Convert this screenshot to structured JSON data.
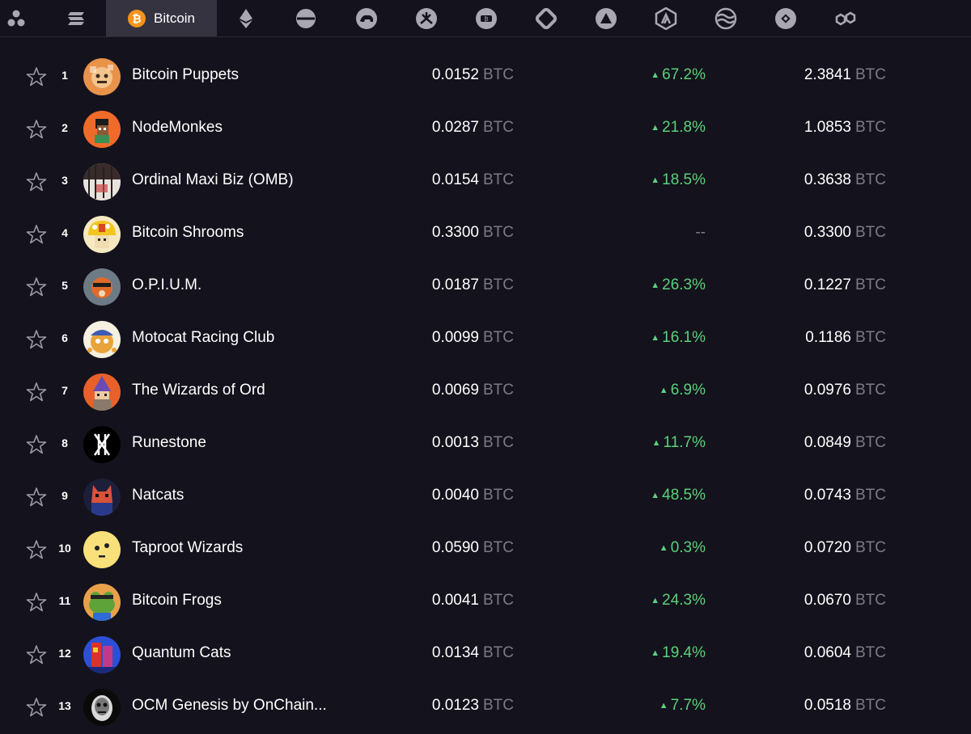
{
  "colors": {
    "background": "#14121c",
    "active_tab": "#353340",
    "positive": "#5bd17c",
    "muted": "#7c7a86",
    "bitcoin": "#f7931a"
  },
  "chain_tabs": [
    {
      "icon": "magic-eden-icon",
      "label": ""
    },
    {
      "icon": "solana-icon",
      "label": ""
    },
    {
      "icon": "bitcoin-icon",
      "label": "Bitcoin",
      "active": true
    },
    {
      "icon": "ethereum-icon",
      "label": ""
    },
    {
      "icon": "base-icon",
      "label": ""
    },
    {
      "icon": "berachain-icon",
      "label": ""
    },
    {
      "icon": "apechain-icon",
      "label": ""
    },
    {
      "icon": "abstract-icon",
      "label": ""
    },
    {
      "icon": "monad-icon",
      "label": ""
    },
    {
      "icon": "avalanche-icon",
      "label": ""
    },
    {
      "icon": "arbitrum-icon",
      "label": ""
    },
    {
      "icon": "sei-icon",
      "label": ""
    },
    {
      "icon": "bnb-icon",
      "label": ""
    },
    {
      "icon": "polygon-icon",
      "label": ""
    }
  ],
  "unit": "BTC",
  "collections": [
    {
      "rank": "1",
      "name": "Bitcoin Puppets",
      "price": "0.0152",
      "change": "67.2%",
      "trend": "up",
      "volume": "2.3841"
    },
    {
      "rank": "2",
      "name": "NodeMonkes",
      "price": "0.0287",
      "change": "21.8%",
      "trend": "up",
      "volume": "1.0853"
    },
    {
      "rank": "3",
      "name": "Ordinal Maxi Biz (OMB)",
      "price": "0.0154",
      "change": "18.5%",
      "trend": "up",
      "volume": "0.3638"
    },
    {
      "rank": "4",
      "name": "Bitcoin Shrooms",
      "price": "0.3300",
      "change": "--",
      "trend": "none",
      "volume": "0.3300"
    },
    {
      "rank": "5",
      "name": "O.P.I.U.M.",
      "price": "0.0187",
      "change": "26.3%",
      "trend": "up",
      "volume": "0.1227"
    },
    {
      "rank": "6",
      "name": "Motocat Racing Club",
      "price": "0.0099",
      "change": "16.1%",
      "trend": "up",
      "volume": "0.1186"
    },
    {
      "rank": "7",
      "name": "The Wizards of Ord",
      "price": "0.0069",
      "change": "6.9%",
      "trend": "up",
      "volume": "0.0976"
    },
    {
      "rank": "8",
      "name": "Runestone",
      "price": "0.0013",
      "change": "11.7%",
      "trend": "up",
      "volume": "0.0849"
    },
    {
      "rank": "9",
      "name": "Natcats",
      "price": "0.0040",
      "change": "48.5%",
      "trend": "up",
      "volume": "0.0743"
    },
    {
      "rank": "10",
      "name": "Taproot Wizards",
      "price": "0.0590",
      "change": "0.3%",
      "trend": "up",
      "volume": "0.0720"
    },
    {
      "rank": "11",
      "name": "Bitcoin Frogs",
      "price": "0.0041",
      "change": "24.3%",
      "trend": "up",
      "volume": "0.0670"
    },
    {
      "rank": "12",
      "name": "Quantum Cats",
      "price": "0.0134",
      "change": "19.4%",
      "trend": "up",
      "volume": "0.0604"
    },
    {
      "rank": "13",
      "name": "OCM Genesis by OnChain...",
      "price": "0.0123",
      "change": "7.7%",
      "trend": "up",
      "volume": "0.0518"
    }
  ]
}
